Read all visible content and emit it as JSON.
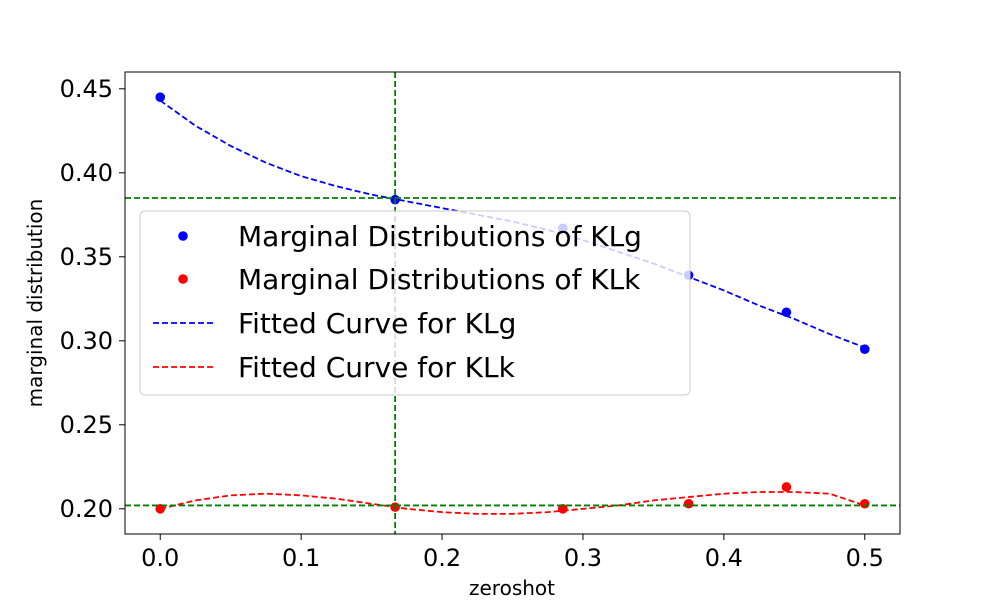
{
  "chart_data": {
    "type": "scatter",
    "xlabel": "zeroshot",
    "ylabel": "marginal distribution",
    "xlim": [
      -0.025,
      0.525
    ],
    "ylim": [
      0.185,
      0.46
    ],
    "x_ticks": [
      0.0,
      0.1,
      0.2,
      0.3,
      0.4,
      0.5
    ],
    "x_tick_labels": [
      "0.0",
      "0.1",
      "0.2",
      "0.3",
      "0.4",
      "0.5"
    ],
    "y_ticks": [
      0.2,
      0.25,
      0.3,
      0.35,
      0.4,
      0.45
    ],
    "y_tick_labels": [
      "0.20",
      "0.25",
      "0.30",
      "0.35",
      "0.40",
      "0.45"
    ],
    "grid": false,
    "legend_position": "center-left",
    "series": [
      {
        "name": "Marginal Distributions of KLg",
        "kind": "points",
        "color": "#0000ff",
        "x": [
          0.0,
          0.1667,
          0.2857,
          0.375,
          0.4444,
          0.5
        ],
        "y": [
          0.445,
          0.384,
          0.367,
          0.339,
          0.317,
          0.295
        ]
      },
      {
        "name": "Marginal Distributions of KLk",
        "kind": "points",
        "color": "#ff0000",
        "x": [
          0.0,
          0.1667,
          0.2857,
          0.375,
          0.4444,
          0.5
        ],
        "y": [
          0.2,
          0.201,
          0.2,
          0.203,
          0.213,
          0.203
        ]
      },
      {
        "name": "Fitted Curve for KLg",
        "kind": "dashed-line",
        "color": "#0000ff",
        "x": [
          0.0,
          0.025,
          0.05,
          0.075,
          0.1,
          0.125,
          0.15,
          0.175,
          0.2,
          0.225,
          0.25,
          0.275,
          0.3,
          0.325,
          0.35,
          0.375,
          0.4,
          0.425,
          0.45,
          0.475,
          0.5
        ],
        "y": [
          0.443,
          0.428,
          0.416,
          0.406,
          0.398,
          0.392,
          0.387,
          0.383,
          0.379,
          0.375,
          0.371,
          0.366,
          0.36,
          0.353,
          0.346,
          0.338,
          0.33,
          0.321,
          0.313,
          0.304,
          0.296
        ]
      },
      {
        "name": "Fitted Curve for KLk",
        "kind": "dashed-line",
        "color": "#ff0000",
        "x": [
          0.0,
          0.025,
          0.05,
          0.075,
          0.1,
          0.125,
          0.15,
          0.175,
          0.2,
          0.225,
          0.25,
          0.275,
          0.3,
          0.325,
          0.35,
          0.375,
          0.4,
          0.425,
          0.45,
          0.475,
          0.5
        ],
        "y": [
          0.2,
          0.205,
          0.208,
          0.209,
          0.208,
          0.206,
          0.203,
          0.2,
          0.198,
          0.197,
          0.197,
          0.198,
          0.2,
          0.202,
          0.205,
          0.207,
          0.209,
          0.21,
          0.21,
          0.209,
          0.202
        ]
      }
    ],
    "reference_lines": {
      "color": "#008000",
      "vertical_x": [
        0.1667
      ],
      "horizontal_y": [
        0.385,
        0.202
      ]
    }
  }
}
